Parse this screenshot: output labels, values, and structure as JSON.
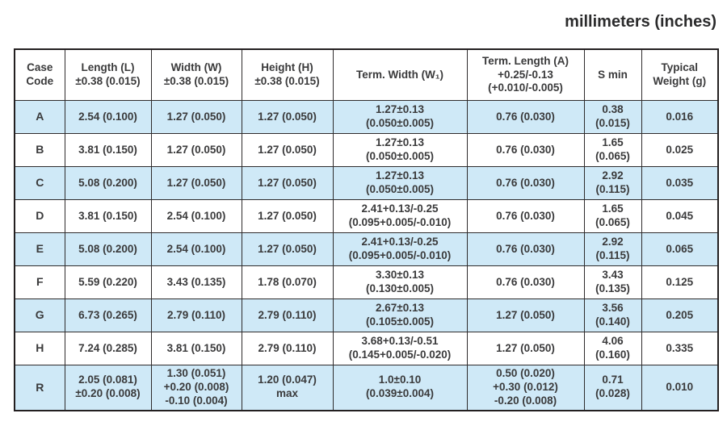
{
  "title": "millimeters (inches)",
  "colors": {
    "row_shade": "#cfe9f7",
    "border": "#231f20",
    "text": "#3a3a3b",
    "background": "#ffffff"
  },
  "table": {
    "headers": [
      "Case\nCode",
      "Length (L)\n±0.38 (0.015)",
      "Width (W)\n±0.38 (0.015)",
      "Height (H)\n±0.38 (0.015)",
      "Term. Width (W₁)",
      "Term. Length (A)\n+0.25/-0.13\n(+0.010/-0.005)",
      "S min",
      "Typical\nWeight (g)"
    ],
    "rows": [
      {
        "code": "A",
        "shaded": true,
        "values": [
          "2.54 (0.100)",
          "1.27 (0.050)",
          "1.27 (0.050)",
          "1.27±0.13\n(0.050±0.005)",
          "0.76 (0.030)",
          "0.38\n(0.015)",
          "0.016"
        ]
      },
      {
        "code": "B",
        "shaded": false,
        "values": [
          "3.81 (0.150)",
          "1.27 (0.050)",
          "1.27 (0.050)",
          "1.27±0.13\n(0.050±0.005)",
          "0.76 (0.030)",
          "1.65\n(0.065)",
          "0.025"
        ]
      },
      {
        "code": "C",
        "shaded": true,
        "values": [
          "5.08 (0.200)",
          "1.27 (0.050)",
          "1.27 (0.050)",
          "1.27±0.13\n(0.050±0.005)",
          "0.76 (0.030)",
          "2.92\n(0.115)",
          "0.035"
        ]
      },
      {
        "code": "D",
        "shaded": false,
        "values": [
          "3.81 (0.150)",
          "2.54 (0.100)",
          "1.27 (0.050)",
          "2.41+0.13/-0.25\n(0.095+0.005/-0.010)",
          "0.76 (0.030)",
          "1.65\n(0.065)",
          "0.045"
        ]
      },
      {
        "code": "E",
        "shaded": true,
        "values": [
          "5.08 (0.200)",
          "2.54 (0.100)",
          "1.27 (0.050)",
          "2.41+0.13/-0.25\n(0.095+0.005/-0.010)",
          "0.76 (0.030)",
          "2.92\n(0.115)",
          "0.065"
        ]
      },
      {
        "code": "F",
        "shaded": false,
        "values": [
          "5.59 (0.220)",
          "3.43 (0.135)",
          "1.78 (0.070)",
          "3.30±0.13\n(0.130±0.005)",
          "0.76 (0.030)",
          "3.43\n(0.135)",
          "0.125"
        ]
      },
      {
        "code": "G",
        "shaded": true,
        "values": [
          "6.73 (0.265)",
          "2.79 (0.110)",
          "2.79 (0.110)",
          "2.67±0.13\n(0.105±0.005)",
          "1.27 (0.050)",
          "3.56\n(0.140)",
          "0.205"
        ]
      },
      {
        "code": "H",
        "shaded": false,
        "values": [
          "7.24 (0.285)",
          "3.81 (0.150)",
          "2.79 (0.110)",
          "3.68+0.13/-0.51\n(0.145+0.005/-0.020)",
          "1.27 (0.050)",
          "4.06\n(0.160)",
          "0.335"
        ]
      },
      {
        "code": "R",
        "shaded": true,
        "values": [
          "2.05 (0.081)\n±0.20 (0.008)",
          "1.30 (0.051)\n+0.20 (0.008)\n-0.10 (0.004)",
          "1.20 (0.047)\nmax",
          "1.0±0.10\n(0.039±0.004)",
          "0.50 (0.020)\n+0.30 (0.012)\n-0.20 (0.008)",
          "0.71\n(0.028)",
          "0.010"
        ]
      }
    ]
  }
}
